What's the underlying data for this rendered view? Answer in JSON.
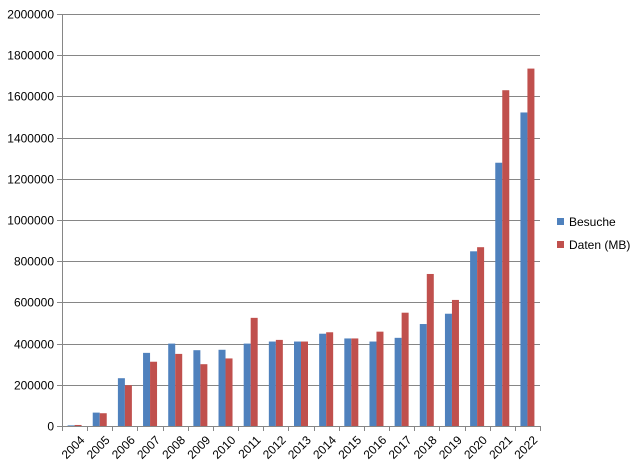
{
  "chart_data": {
    "type": "bar",
    "title": "",
    "xlabel": "",
    "ylabel": "",
    "ylim": [
      0,
      2000000
    ],
    "y_ticks": [
      0,
      200000,
      400000,
      600000,
      800000,
      1000000,
      1200000,
      1400000,
      1600000,
      1800000,
      2000000
    ],
    "y_tick_labels": [
      "0",
      "200000",
      "400000",
      "600000",
      "800000",
      "1000000",
      "1200000",
      "1400000",
      "1600000",
      "1800000",
      "2000000"
    ],
    "grid": true,
    "legend_position": "right",
    "categories": [
      "2004",
      "2005",
      "2006",
      "2007",
      "2008",
      "2009",
      "2010",
      "2011",
      "2012",
      "2013",
      "2014",
      "2015",
      "2016",
      "2017",
      "2018",
      "2019",
      "2020",
      "2021",
      "2022"
    ],
    "series": [
      {
        "name": "Besuche",
        "color": "#4F81BD",
        "values": [
          3000,
          65000,
          232000,
          355000,
          400000,
          368000,
          370000,
          400000,
          410000,
          410000,
          448000,
          425000,
          410000,
          428000,
          495000,
          545000,
          848000,
          1278000,
          1522000
        ]
      },
      {
        "name": "Daten (MB)",
        "color": "#C0504D",
        "values": [
          5000,
          62000,
          198000,
          312000,
          350000,
          300000,
          328000,
          525000,
          418000,
          410000,
          455000,
          425000,
          458000,
          550000,
          738000,
          612000,
          868000,
          1630000,
          1735000
        ]
      }
    ]
  }
}
